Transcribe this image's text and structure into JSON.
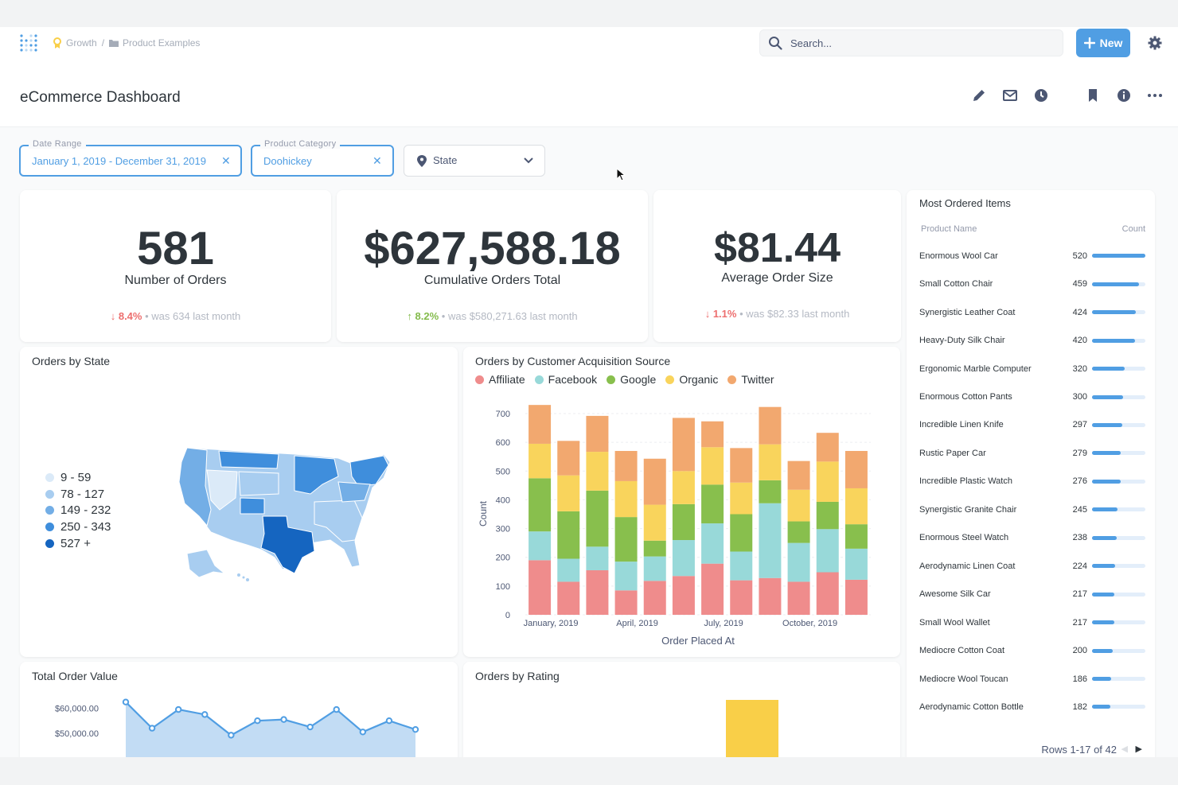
{
  "breadcrumb": {
    "collection": "Growth",
    "separator": "/",
    "folder": "Product Examples"
  },
  "search": {
    "placeholder": "Search..."
  },
  "new_button": {
    "label": "New"
  },
  "dashboard": {
    "title": "eCommerce Dashboard"
  },
  "filters": [
    {
      "label": "Date Range",
      "value": "January 1, 2019 - December 31, 2019"
    },
    {
      "label": "Product Category",
      "value": "Doohickey"
    },
    {
      "placeholder": "State"
    }
  ],
  "kpis": [
    {
      "value": "581",
      "label": "Number of Orders",
      "change": "8.4%",
      "direction": "down",
      "compare": "was 634 last month"
    },
    {
      "value": "$627,588.18",
      "label": "Cumulative Orders Total",
      "change": "8.2%",
      "direction": "up",
      "compare": "was $580,271.63 last month"
    },
    {
      "value": "$81.44",
      "label": "Average Order Size",
      "change": "1.1%",
      "direction": "down",
      "compare": "was $82.33 last month"
    }
  ],
  "orders_by_state": {
    "title": "Orders by State",
    "legend": [
      {
        "label": "9 - 59",
        "color": "#dbeaf8"
      },
      {
        "label": "78 - 127",
        "color": "#a8cdf0"
      },
      {
        "label": "149 - 232",
        "color": "#73aee6"
      },
      {
        "label": "250 - 343",
        "color": "#3f8edc"
      },
      {
        "label": "527 +",
        "color": "#1565c0"
      }
    ]
  },
  "acquisition": {
    "title": "Orders by Customer Acquisition Source",
    "legend": [
      {
        "name": "Affiliate",
        "color": "#ef8c8c"
      },
      {
        "name": "Facebook",
        "color": "#98d9d9"
      },
      {
        "name": "Google",
        "color": "#88bf4d"
      },
      {
        "name": "Organic",
        "color": "#f9d45c"
      },
      {
        "name": "Twitter",
        "color": "#f2a86f"
      }
    ]
  },
  "chart_data": {
    "type": "bar",
    "stacked": true,
    "title": "Orders by Customer Acquisition Source",
    "xlabel": "Order Placed At",
    "ylabel": "Count",
    "ylim": [
      0,
      700
    ],
    "yticks": [
      0,
      100,
      200,
      300,
      400,
      500,
      600,
      700
    ],
    "xticks": [
      "January, 2019",
      "April, 2019",
      "July, 2019",
      "October, 2019"
    ],
    "categories": [
      "Jan 2019",
      "Feb 2019",
      "Mar 2019",
      "Apr 2019",
      "May 2019",
      "Jun 2019",
      "Jul 2019",
      "Aug 2019",
      "Sep 2019",
      "Oct 2019",
      "Nov 2019",
      "Dec 2019"
    ],
    "series": [
      {
        "name": "Affiliate",
        "values": [
          190,
          115,
          155,
          85,
          118,
          135,
          178,
          120,
          128,
          115,
          148,
          122
        ]
      },
      {
        "name": "Facebook",
        "values": [
          100,
          80,
          82,
          100,
          85,
          125,
          140,
          100,
          260,
          135,
          150,
          108
        ]
      },
      {
        "name": "Google",
        "values": [
          185,
          165,
          195,
          155,
          55,
          125,
          135,
          130,
          80,
          75,
          95,
          85
        ]
      },
      {
        "name": "Organic",
        "values": [
          120,
          125,
          135,
          125,
          125,
          115,
          130,
          110,
          125,
          110,
          140,
          125
        ]
      },
      {
        "name": "Twitter",
        "values": [
          135,
          120,
          125,
          105,
          160,
          185,
          90,
          120,
          130,
          100,
          100,
          130
        ]
      }
    ]
  },
  "total_order_value": {
    "title": "Total Order Value",
    "chart_data": {
      "type": "area",
      "yticks": [
        "$60,000.00",
        "$50,000.00"
      ],
      "ylim": [
        34000,
        64000
      ],
      "values": [
        62500,
        52000,
        59500,
        57500,
        49200,
        55000,
        55500,
        52500,
        59500,
        50500,
        55000,
        51500
      ]
    }
  },
  "orders_by_rating": {
    "title": "Orders by Rating"
  },
  "most_ordered": {
    "title": "Most Ordered Items",
    "columns": [
      "Product Name",
      "Count"
    ],
    "max": 520,
    "rows": [
      {
        "name": "Enormous Wool Car",
        "count": 520
      },
      {
        "name": "Small Cotton Chair",
        "count": 459
      },
      {
        "name": "Synergistic Leather Coat",
        "count": 424
      },
      {
        "name": "Heavy-Duty Silk Chair",
        "count": 420
      },
      {
        "name": "Ergonomic Marble Computer",
        "count": 320
      },
      {
        "name": "Enormous Cotton Pants",
        "count": 300
      },
      {
        "name": "Incredible Linen Knife",
        "count": 297
      },
      {
        "name": "Rustic Paper Car",
        "count": 279
      },
      {
        "name": "Incredible Plastic Watch",
        "count": 276
      },
      {
        "name": "Synergistic Granite Chair",
        "count": 245
      },
      {
        "name": "Enormous Steel Watch",
        "count": 238
      },
      {
        "name": "Aerodynamic Linen Coat",
        "count": 224
      },
      {
        "name": "Awesome Silk Car",
        "count": 217
      },
      {
        "name": "Small Wool Wallet",
        "count": 217
      },
      {
        "name": "Mediocre Cotton Coat",
        "count": 200
      },
      {
        "name": "Mediocre Wool Toucan",
        "count": 186
      },
      {
        "name": "Aerodynamic Cotton Bottle",
        "count": 182
      }
    ],
    "pagination": "Rows 1-17 of 42"
  }
}
